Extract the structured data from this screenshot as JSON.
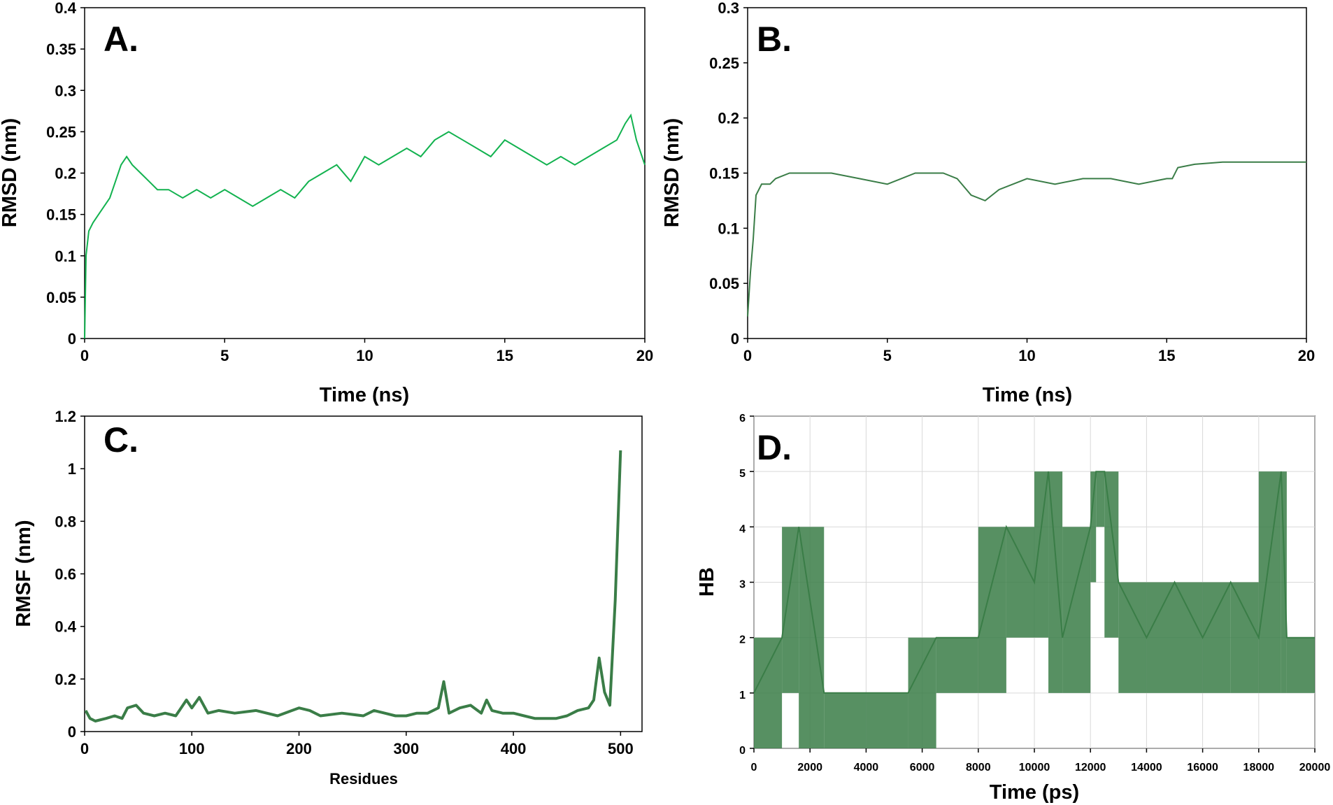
{
  "chart_data": [
    {
      "panel_label": "A.",
      "type": "line",
      "xlabel": "Time (ns)",
      "ylabel": "RMSD (nm)",
      "xlim": [
        0,
        20
      ],
      "ylim": [
        0,
        0.4
      ],
      "xticks": [
        0,
        5,
        10,
        15,
        20
      ],
      "yticks": [
        0,
        0.05,
        0.1,
        0.15,
        0.2,
        0.25,
        0.3,
        0.35,
        0.4
      ],
      "grid": false,
      "colors": {
        "line": "#12b24f"
      },
      "series": [
        {
          "x": [
            0,
            0.05,
            0.15,
            0.3,
            0.5,
            0.7,
            0.9,
            1.1,
            1.3,
            1.5,
            1.7,
            2.0,
            2.3,
            2.6,
            3.0,
            3.5,
            4.0,
            4.5,
            5.0,
            5.5,
            6.0,
            6.5,
            7.0,
            7.5,
            8.0,
            8.5,
            9.0,
            9.5,
            10.0,
            10.5,
            11.0,
            11.5,
            12.0,
            12.5,
            13.0,
            13.5,
            14.0,
            14.5,
            15.0,
            15.5,
            16.0,
            16.5,
            17.0,
            17.5,
            18.0,
            18.5,
            19.0,
            19.3,
            19.5,
            19.7,
            20.0
          ],
          "y": [
            0.0,
            0.1,
            0.13,
            0.14,
            0.15,
            0.16,
            0.17,
            0.19,
            0.21,
            0.22,
            0.21,
            0.2,
            0.19,
            0.18,
            0.18,
            0.17,
            0.18,
            0.17,
            0.18,
            0.17,
            0.16,
            0.17,
            0.18,
            0.17,
            0.19,
            0.2,
            0.21,
            0.19,
            0.22,
            0.21,
            0.22,
            0.23,
            0.22,
            0.24,
            0.25,
            0.24,
            0.23,
            0.22,
            0.24,
            0.23,
            0.22,
            0.21,
            0.22,
            0.21,
            0.22,
            0.23,
            0.24,
            0.26,
            0.27,
            0.24,
            0.21
          ]
        }
      ]
    },
    {
      "panel_label": "B.",
      "type": "line",
      "xlabel": "Time (ns)",
      "ylabel": "RMSD (nm)",
      "xlim": [
        0,
        20
      ],
      "ylim": [
        0,
        0.3
      ],
      "xticks": [
        0,
        5,
        10,
        15,
        20
      ],
      "yticks": [
        0,
        0.05,
        0.1,
        0.15,
        0.2,
        0.25,
        0.3
      ],
      "grid": false,
      "colors": {
        "line": "#3a7d47"
      },
      "series": [
        {
          "x": [
            0,
            0.05,
            0.1,
            0.2,
            0.3,
            0.5,
            0.8,
            1.0,
            1.5,
            2.0,
            3.0,
            4.0,
            5.0,
            6.0,
            7.0,
            7.5,
            8.0,
            8.5,
            9.0,
            10.0,
            11.0,
            12.0,
            13.0,
            14.0,
            15.0,
            15.2,
            15.4,
            16.0,
            17.0,
            18.0,
            19.0,
            20.0
          ],
          "y": [
            0.02,
            0.04,
            0.06,
            0.09,
            0.13,
            0.14,
            0.14,
            0.145,
            0.15,
            0.15,
            0.15,
            0.145,
            0.14,
            0.15,
            0.15,
            0.145,
            0.13,
            0.125,
            0.135,
            0.145,
            0.14,
            0.145,
            0.145,
            0.14,
            0.145,
            0.145,
            0.155,
            0.158,
            0.16,
            0.16,
            0.16,
            0.16
          ]
        }
      ]
    },
    {
      "panel_label": "C.",
      "type": "line",
      "xlabel": "Residues",
      "ylabel": "RMSF (nm)",
      "xlim": [
        0,
        520
      ],
      "ylim": [
        0,
        1.2
      ],
      "xticks": [
        0,
        100,
        200,
        300,
        400,
        500
      ],
      "yticks": [
        0,
        0.2,
        0.4,
        0.6,
        0.8,
        1,
        1.2
      ],
      "grid": false,
      "colors": {
        "line": "#3a7d47"
      },
      "series": [
        {
          "x": [
            1,
            5,
            10,
            20,
            28,
            35,
            40,
            48,
            55,
            65,
            75,
            85,
            95,
            100,
            107,
            115,
            125,
            140,
            160,
            180,
            200,
            210,
            220,
            240,
            260,
            270,
            280,
            290,
            300,
            310,
            320,
            330,
            335,
            340,
            350,
            360,
            370,
            375,
            380,
            390,
            400,
            410,
            420,
            430,
            440,
            450,
            460,
            470,
            475,
            480,
            485,
            490,
            495,
            500
          ],
          "y": [
            0.08,
            0.05,
            0.04,
            0.05,
            0.06,
            0.05,
            0.09,
            0.1,
            0.07,
            0.06,
            0.07,
            0.06,
            0.12,
            0.09,
            0.13,
            0.07,
            0.08,
            0.07,
            0.08,
            0.06,
            0.09,
            0.08,
            0.06,
            0.07,
            0.06,
            0.08,
            0.07,
            0.06,
            0.06,
            0.07,
            0.07,
            0.09,
            0.19,
            0.07,
            0.09,
            0.1,
            0.07,
            0.12,
            0.08,
            0.07,
            0.07,
            0.06,
            0.05,
            0.05,
            0.05,
            0.06,
            0.08,
            0.09,
            0.12,
            0.28,
            0.15,
            0.1,
            0.5,
            1.07
          ]
        }
      ]
    },
    {
      "panel_label": "D.",
      "type": "line",
      "xlabel": "Time (ps)",
      "ylabel": "HB",
      "xlim": [
        0,
        20000
      ],
      "ylim": [
        0,
        6
      ],
      "xticks": [
        0,
        2000,
        4000,
        6000,
        8000,
        10000,
        12000,
        14000,
        16000,
        18000,
        20000
      ],
      "yticks": [
        0,
        1,
        2,
        3,
        4,
        5,
        6
      ],
      "grid": true,
      "colors": {
        "line": "#3a7d47",
        "grid": "#d9d9d9"
      },
      "series": [
        {
          "x": [
            0,
            1000,
            1600,
            2500,
            4000,
            5500,
            6500,
            8000,
            9000,
            10000,
            10500,
            11000,
            12000,
            12200,
            12500,
            13000,
            14000,
            15000,
            16000,
            17000,
            18000,
            18800,
            19000,
            20000
          ],
          "y": [
            1,
            2,
            4,
            1,
            1,
            1,
            2,
            2,
            4,
            3,
            5,
            2,
            4,
            5,
            5,
            3,
            2,
            3,
            2,
            3,
            2,
            5,
            2,
            2
          ]
        }
      ]
    }
  ]
}
